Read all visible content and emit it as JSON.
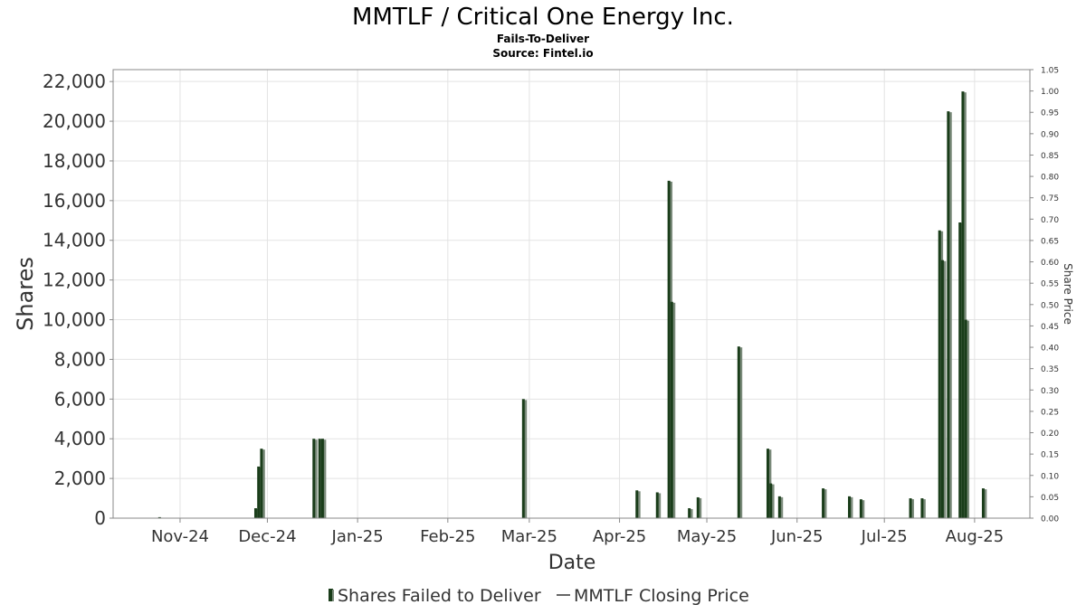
{
  "chart_data": {
    "type": "bar",
    "title": "MMTLF / Critical One Energy Inc.",
    "subtitle": "Fails-To-Deliver",
    "source": "Source: Fintel.io",
    "xlabel": "Date",
    "ylabel": "Shares",
    "y2label": "Share Price",
    "ylim": [
      0,
      22600
    ],
    "y2lim": [
      0,
      1.05
    ],
    "grid": true,
    "legend_position": "bottom",
    "x_tick_labels": [
      "Nov-24",
      "Dec-24",
      "Jan-25",
      "Feb-25",
      "Mar-25",
      "Apr-25",
      "May-25",
      "Jun-25",
      "Jul-25",
      "Aug-25"
    ],
    "y_tick_labels": [
      "0",
      "2,000",
      "4,000",
      "6,000",
      "8,000",
      "10,000",
      "12,000",
      "14,000",
      "16,000",
      "18,000",
      "20,000",
      "22,000"
    ],
    "y_ticks": [
      0,
      2000,
      4000,
      6000,
      8000,
      10000,
      12000,
      14000,
      16000,
      18000,
      20000,
      22000
    ],
    "y2_tick_labels": [
      "0.00",
      "0.05",
      "0.10",
      "0.15",
      "0.20",
      "0.25",
      "0.30",
      "0.35",
      "0.40",
      "0.45",
      "0.50",
      "0.55",
      "0.60",
      "0.65",
      "0.70",
      "0.75",
      "0.80",
      "0.85",
      "0.90",
      "0.95",
      "1.00",
      "1.05"
    ],
    "y2_ticks": [
      0,
      0.05,
      0.1,
      0.15,
      0.2,
      0.25,
      0.3,
      0.35,
      0.4,
      0.45,
      0.5,
      0.55,
      0.6,
      0.65,
      0.7,
      0.75,
      0.8,
      0.85,
      0.9,
      0.95,
      1.0,
      1.05
    ],
    "x_ticks": [
      "2024-11-01",
      "2024-12-01",
      "2025-01-01",
      "2025-02-01",
      "2025-03-01",
      "2025-04-01",
      "2025-05-01",
      "2025-06-01",
      "2025-07-01",
      "2025-08-01"
    ],
    "x_range": [
      "2024-10-09",
      "2025-08-20"
    ],
    "series": [
      {
        "name": "Shares Failed to Deliver",
        "type": "bar",
        "color": "#1a3d1a",
        "shadow_color": "#7a8a7a",
        "points": [
          {
            "x": "2024-10-25",
            "y": 50
          },
          {
            "x": "2024-11-27",
            "y": 500
          },
          {
            "x": "2024-11-28",
            "y": 2600
          },
          {
            "x": "2024-11-29",
            "y": 3500
          },
          {
            "x": "2024-12-17",
            "y": 4000
          },
          {
            "x": "2024-12-19",
            "y": 4000
          },
          {
            "x": "2024-12-20",
            "y": 4000
          },
          {
            "x": "2025-02-27",
            "y": 6000
          },
          {
            "x": "2025-04-07",
            "y": 1400
          },
          {
            "x": "2025-04-14",
            "y": 1300
          },
          {
            "x": "2025-04-18",
            "y": 17000
          },
          {
            "x": "2025-04-19",
            "y": 10900
          },
          {
            "x": "2025-04-25",
            "y": 500
          },
          {
            "x": "2025-04-28",
            "y": 1050
          },
          {
            "x": "2025-05-12",
            "y": 8650
          },
          {
            "x": "2025-05-22",
            "y": 3500
          },
          {
            "x": "2025-05-23",
            "y": 1750
          },
          {
            "x": "2025-05-26",
            "y": 1100
          },
          {
            "x": "2025-06-10",
            "y": 1500
          },
          {
            "x": "2025-06-19",
            "y": 1100
          },
          {
            "x": "2025-06-23",
            "y": 950
          },
          {
            "x": "2025-07-10",
            "y": 1000
          },
          {
            "x": "2025-07-14",
            "y": 1000
          },
          {
            "x": "2025-07-20",
            "y": 14500
          },
          {
            "x": "2025-07-21",
            "y": 13000
          },
          {
            "x": "2025-07-23",
            "y": 20500
          },
          {
            "x": "2025-07-27",
            "y": 14900
          },
          {
            "x": "2025-07-28",
            "y": 21500
          },
          {
            "x": "2025-07-29",
            "y": 10000
          },
          {
            "x": "2025-08-04",
            "y": 1500
          }
        ]
      },
      {
        "name": "MMTLF Closing Price",
        "type": "line",
        "color": "#1a3d1a",
        "points": []
      }
    ]
  }
}
